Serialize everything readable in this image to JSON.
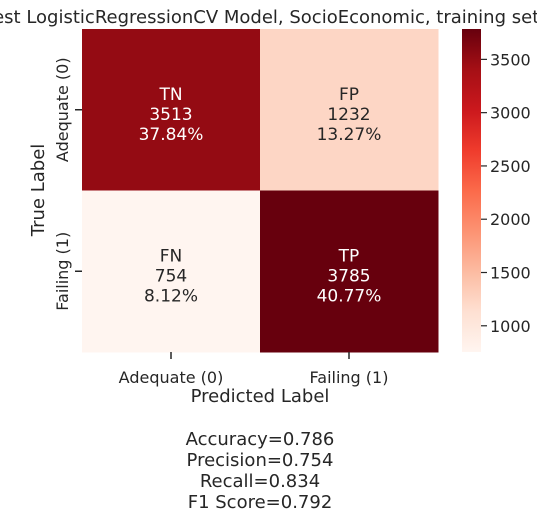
{
  "chart_data": {
    "type": "heatmap",
    "title": "Best LogisticRegressionCV Model, SocioEconomic, training set",
    "xlabel": "Predicted Label",
    "ylabel": "True Label",
    "x_categories": [
      "Adequate (0)",
      "Failing (1)"
    ],
    "y_categories": [
      "Adequate (0)",
      "Failing (1)"
    ],
    "cells": [
      {
        "row": 0,
        "col": 0,
        "label": "TN",
        "value": 3513,
        "percent": "37.84%"
      },
      {
        "row": 0,
        "col": 1,
        "label": "FP",
        "value": 1232,
        "percent": "13.27%"
      },
      {
        "row": 1,
        "col": 0,
        "label": "FN",
        "value": 754,
        "percent": "8.12%"
      },
      {
        "row": 1,
        "col": 1,
        "label": "TP",
        "value": 3785,
        "percent": "40.77%"
      }
    ],
    "colormap": "Reds",
    "color_min": 754,
    "color_max": 3785,
    "colorbar_ticks": [
      "1000",
      "1500",
      "2000",
      "2500",
      "3000",
      "3500"
    ],
    "colorbar_tick_values": [
      1000,
      1500,
      2000,
      2500,
      3000,
      3500
    ],
    "metrics": [
      "Accuracy=0.786",
      "Precision=0.754",
      "Recall=0.834",
      "F1 Score=0.792"
    ]
  }
}
